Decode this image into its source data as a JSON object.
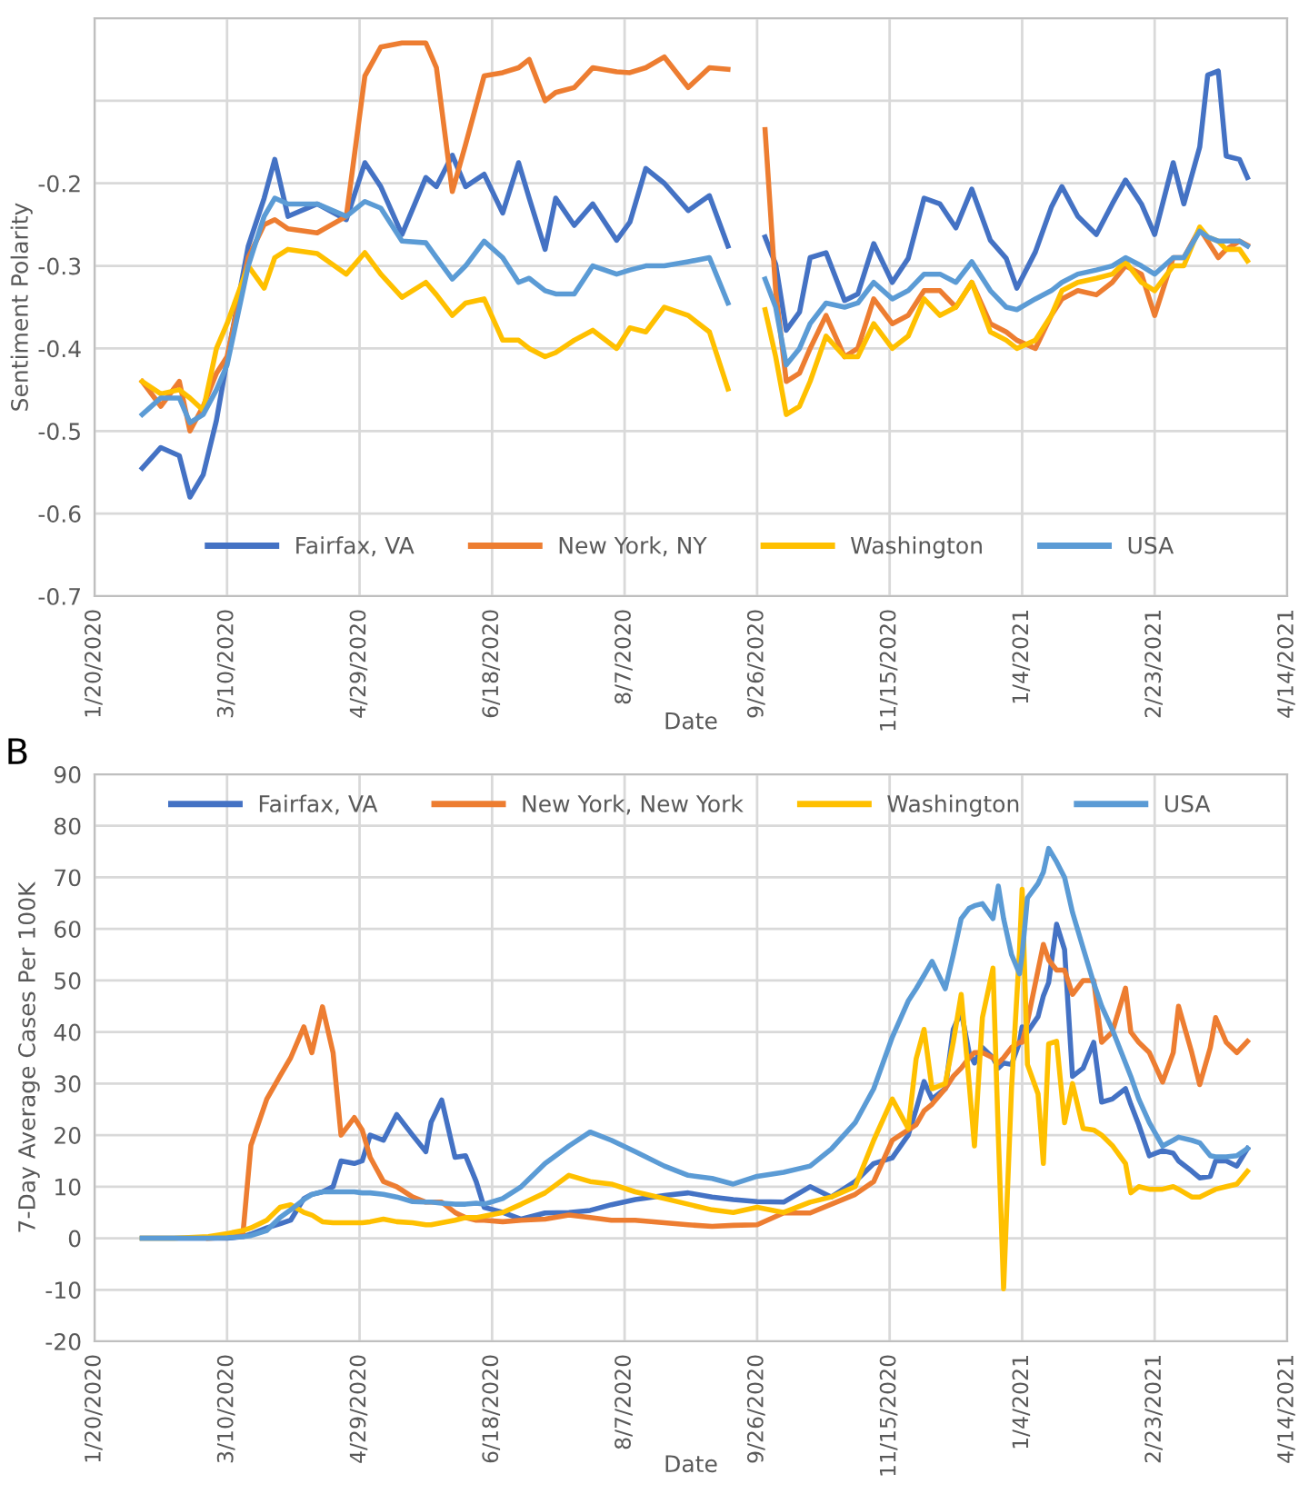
{
  "chart_data": [
    {
      "type": "line",
      "ylabel": "Sentiment Polarity",
      "xlabel": "Date",
      "grid": true,
      "legend": "bottom",
      "line_style": "solid",
      "marker": "none",
      "xlim": [
        "2020-01-20",
        "2021-04-14"
      ],
      "xticks": [
        {
          "value": "2020-01-20",
          "label": "1/20/2020"
        },
        {
          "value": "2020-03-10",
          "label": "3/10/2020"
        },
        {
          "value": "2020-04-29",
          "label": "4/29/2020"
        },
        {
          "value": "2020-06-18",
          "label": "6/18/2020"
        },
        {
          "value": "2020-08-07",
          "label": "8/7/2020"
        },
        {
          "value": "2020-09-26",
          "label": "9/26/2020"
        },
        {
          "value": "2020-11-15",
          "label": "11/15/2020"
        },
        {
          "value": "2021-01-04",
          "label": "1/4/2021"
        },
        {
          "value": "2021-02-23",
          "label": "2/23/2021"
        },
        {
          "value": "2021-04-14",
          "label": "4/14/2021"
        }
      ],
      "ylim": [
        -0.7,
        0
      ],
      "yticks": [
        -0.7,
        -0.6,
        -0.5,
        -0.4,
        -0.3,
        -0.2,
        {
          "value": -0.1,
          "label": null
        },
        {
          "value": 0,
          "label": null
        }
      ],
      "x": [
        "2020-02-07",
        "2020-02-14",
        "2020-02-21",
        "2020-02-25",
        "2020-03-01",
        "2020-03-06",
        "2020-03-10",
        "2020-03-18",
        "2020-03-24",
        "2020-03-28",
        "2020-04-02",
        "2020-04-13",
        "2020-04-24",
        "2020-05-01",
        "2020-05-07",
        "2020-05-15",
        "2020-05-24",
        "2020-05-28",
        "2020-06-03",
        "2020-06-08",
        "2020-06-15",
        "2020-06-22",
        "2020-06-28",
        "2020-07-02",
        "2020-07-08",
        "2020-07-12",
        "2020-07-19",
        "2020-07-26",
        "2020-08-04",
        "2020-08-09",
        "2020-08-15",
        "2020-08-22",
        "2020-08-31",
        "2020-09-08",
        "2020-09-15",
        "2020-09-22",
        "2020-09-29",
        "2020-10-03",
        "2020-10-07",
        "2020-10-12",
        "2020-10-16",
        "2020-10-22",
        "2020-10-29",
        "2020-11-03",
        "2020-11-09",
        "2020-11-16",
        "2020-11-22",
        "2020-11-28",
        "2020-12-04",
        "2020-12-10",
        "2020-12-16",
        "2020-12-23",
        "2020-12-29",
        "2021-01-02",
        "2021-01-09",
        "2021-01-15",
        "2021-01-19",
        "2021-01-25",
        "2021-02-01",
        "2021-02-07",
        "2021-02-12",
        "2021-02-18",
        "2021-02-23",
        "2021-03-02",
        "2021-03-06",
        "2021-03-12",
        "2021-03-15",
        "2021-03-19",
        "2021-03-22",
        "2021-03-27",
        "2021-03-30"
      ],
      "series": [
        {
          "name": "Fairfax, VA",
          "color": "#4472c4",
          "values": [
            -0.545,
            -0.52,
            -0.53,
            -0.58,
            -0.553,
            -0.487,
            -0.414,
            -0.276,
            -0.218,
            -0.171,
            -0.24,
            -0.225,
            -0.244,
            -0.175,
            -0.204,
            -0.262,
            -0.193,
            -0.204,
            -0.166,
            -0.204,
            -0.189,
            -0.236,
            -0.175,
            -0.218,
            -0.28,
            -0.218,
            -0.251,
            -0.225,
            -0.269,
            -0.247,
            -0.182,
            -0.2,
            -0.233,
            -0.215,
            -0.276,
            null,
            -0.265,
            -0.298,
            -0.378,
            -0.356,
            -0.29,
            -0.284,
            -0.342,
            -0.334,
            -0.273,
            -0.32,
            -0.291,
            -0.218,
            -0.225,
            -0.254,
            -0.207,
            -0.269,
            -0.291,
            -0.327,
            -0.283,
            -0.229,
            -0.204,
            -0.24,
            -0.262,
            -0.225,
            -0.196,
            -0.225,
            -0.262,
            -0.175,
            -0.225,
            -0.156,
            -0.069,
            -0.064,
            -0.167,
            -0.171,
            -0.193
          ]
        },
        {
          "name": "New York, NY",
          "color": "#ed7d31",
          "values": [
            -0.44,
            -0.47,
            -0.44,
            -0.5,
            -0.47,
            -0.43,
            -0.41,
            -0.29,
            -0.25,
            -0.244,
            -0.255,
            -0.26,
            -0.24,
            -0.07,
            -0.035,
            -0.03,
            -0.03,
            -0.06,
            -0.21,
            -0.153,
            -0.07,
            -0.066,
            -0.06,
            -0.05,
            -0.1,
            -0.09,
            -0.084,
            -0.06,
            -0.065,
            -0.066,
            -0.06,
            -0.047,
            -0.084,
            -0.06,
            -0.062,
            null,
            -0.135,
            -0.33,
            -0.44,
            -0.43,
            -0.4,
            -0.36,
            -0.41,
            -0.4,
            -0.34,
            -0.37,
            -0.36,
            -0.33,
            -0.33,
            -0.35,
            -0.32,
            -0.37,
            -0.38,
            -0.39,
            -0.4,
            -0.36,
            -0.34,
            -0.33,
            -0.335,
            -0.32,
            -0.3,
            -0.31,
            -0.36,
            -0.29,
            -0.29,
            -0.255,
            -0.27,
            -0.29,
            -0.28,
            -0.27,
            -0.275
          ]
        },
        {
          "name": "Washington",
          "color": "#ffc000",
          "values": [
            -0.44,
            -0.455,
            -0.45,
            -0.46,
            -0.475,
            -0.4,
            -0.37,
            -0.3,
            -0.327,
            -0.29,
            -0.28,
            -0.285,
            -0.31,
            -0.284,
            -0.31,
            -0.338,
            -0.32,
            -0.335,
            -0.36,
            -0.345,
            -0.34,
            -0.39,
            -0.39,
            -0.4,
            -0.41,
            -0.405,
            -0.39,
            -0.378,
            -0.4,
            -0.375,
            -0.38,
            -0.35,
            -0.36,
            -0.38,
            -0.449,
            null,
            -0.353,
            -0.41,
            -0.48,
            -0.47,
            -0.44,
            -0.385,
            -0.41,
            -0.41,
            -0.37,
            -0.4,
            -0.385,
            -0.34,
            -0.36,
            -0.35,
            -0.32,
            -0.38,
            -0.39,
            -0.4,
            -0.39,
            -0.36,
            -0.33,
            -0.32,
            -0.315,
            -0.31,
            -0.295,
            -0.32,
            -0.33,
            -0.3,
            -0.3,
            -0.253,
            -0.265,
            -0.27,
            -0.28,
            -0.28,
            -0.294
          ]
        },
        {
          "name": "USA",
          "color": "#5b9bd5",
          "values": [
            -0.48,
            -0.46,
            -0.46,
            -0.49,
            -0.48,
            -0.45,
            -0.42,
            -0.3,
            -0.24,
            -0.218,
            -0.225,
            -0.225,
            -0.24,
            -0.222,
            -0.23,
            -0.27,
            -0.272,
            -0.29,
            -0.316,
            -0.3,
            -0.27,
            -0.29,
            -0.32,
            -0.315,
            -0.33,
            -0.334,
            -0.334,
            -0.3,
            -0.31,
            -0.305,
            -0.3,
            -0.3,
            -0.295,
            -0.29,
            -0.345,
            null,
            -0.316,
            -0.35,
            -0.42,
            -0.4,
            -0.37,
            -0.345,
            -0.35,
            -0.345,
            -0.32,
            -0.34,
            -0.33,
            -0.31,
            -0.31,
            -0.32,
            -0.295,
            -0.33,
            -0.35,
            -0.353,
            -0.34,
            -0.33,
            -0.32,
            -0.31,
            -0.305,
            -0.3,
            -0.29,
            -0.3,
            -0.31,
            -0.29,
            -0.29,
            -0.258,
            -0.265,
            -0.27,
            -0.27,
            -0.27,
            -0.276
          ]
        }
      ]
    },
    {
      "type": "line",
      "ylabel": "7-Day Average Cases Per 100K",
      "xlabel": "Date",
      "grid": true,
      "legend": "top",
      "line_style": "solid",
      "marker": "none",
      "annotations": [
        "B"
      ],
      "xlim": [
        "2020-01-20",
        "2021-04-14"
      ],
      "xticks": [
        {
          "value": "2020-01-20",
          "label": "1/20/2020"
        },
        {
          "value": "2020-03-10",
          "label": "3/10/2020"
        },
        {
          "value": "2020-04-29",
          "label": "4/29/2020"
        },
        {
          "value": "2020-06-18",
          "label": "6/18/2020"
        },
        {
          "value": "2020-08-07",
          "label": "8/7/2020"
        },
        {
          "value": "2020-09-26",
          "label": "9/26/2020"
        },
        {
          "value": "2020-11-15",
          "label": "11/15/2020"
        },
        {
          "value": "2021-01-04",
          "label": "1/4/2021"
        },
        {
          "value": "2021-02-23",
          "label": "2/23/2021"
        },
        {
          "value": "2021-04-14",
          "label": "4/14/2021"
        }
      ],
      "ylim": [
        -20,
        90
      ],
      "yticks": [
        -20,
        -10,
        0,
        10,
        20,
        30,
        40,
        50,
        60,
        70,
        80,
        90
      ],
      "x": [
        "2020-02-07",
        "2020-02-19",
        "2020-03-03",
        "2020-03-10",
        "2020-03-16",
        "2020-03-19",
        "2020-03-25",
        "2020-03-30",
        "2020-04-03",
        "2020-04-08",
        "2020-04-11",
        "2020-04-15",
        "2020-04-19",
        "2020-04-22",
        "2020-04-27",
        "2020-04-30",
        "2020-05-03",
        "2020-05-08",
        "2020-05-13",
        "2020-05-19",
        "2020-05-24",
        "2020-05-26",
        "2020-05-30",
        "2020-06-04",
        "2020-06-08",
        "2020-06-12",
        "2020-06-15",
        "2020-06-22",
        "2020-06-29",
        "2020-07-08",
        "2020-07-17",
        "2020-07-25",
        "2020-08-02",
        "2020-08-11",
        "2020-08-22",
        "2020-08-31",
        "2020-09-09",
        "2020-09-17",
        "2020-09-26",
        "2020-10-06",
        "2020-10-16",
        "2020-10-24",
        "2020-11-02",
        "2020-11-09",
        "2020-11-16",
        "2020-11-22",
        "2020-11-25",
        "2020-11-28",
        "2020-12-01",
        "2020-12-06",
        "2020-12-09",
        "2020-12-12",
        "2020-12-15",
        "2020-12-17",
        "2020-12-20",
        "2020-12-24",
        "2020-12-26",
        "2020-12-28",
        "2020-12-31",
        "2021-01-03",
        "2021-01-04",
        "2021-01-06",
        "2021-01-10",
        "2021-01-12",
        "2021-01-14",
        "2021-01-17",
        "2021-01-20",
        "2021-01-23",
        "2021-01-27",
        "2021-01-31",
        "2021-02-03",
        "2021-02-07",
        "2021-02-12",
        "2021-02-14",
        "2021-02-17",
        "2021-02-21",
        "2021-02-26",
        "2021-03-02",
        "2021-03-04",
        "2021-03-09",
        "2021-03-12",
        "2021-03-16",
        "2021-03-18",
        "2021-03-22",
        "2021-03-26",
        "2021-03-30"
      ],
      "series": [
        {
          "name": "Fairfax, VA",
          "color": "#4472c4",
          "values": [
            0,
            0,
            0,
            0,
            0.3,
            0.8,
            2,
            2.8,
            3.5,
            7.7,
            8.5,
            9,
            10,
            15,
            14.5,
            15,
            20,
            19,
            24,
            20,
            16.8,
            22.5,
            26.8,
            15.7,
            16,
            11,
            6,
            5,
            3.7,
            4.9,
            5,
            5.4,
            6.5,
            7.5,
            8.3,
            8.8,
            8,
            7.5,
            7.1,
            7,
            10,
            8,
            11,
            14.5,
            15.6,
            20,
            25,
            30.4,
            27,
            29,
            40.5,
            44,
            36,
            34,
            37,
            35,
            33,
            34,
            33.7,
            38,
            41,
            40,
            43,
            47,
            49.6,
            60.9,
            56,
            31.4,
            33,
            38,
            26.4,
            27,
            29,
            26,
            22,
            16,
            17,
            16.5,
            15,
            13,
            11.7,
            12,
            15,
            15,
            14,
            17.4
          ]
        },
        {
          "name": "New York, New York",
          "color": "#ed7d31",
          "values": [
            null,
            null,
            0,
            0.2,
            0.9,
            18,
            27,
            31.5,
            35,
            41,
            36,
            44.9,
            36,
            20,
            23.4,
            21,
            15.7,
            11,
            10,
            8,
            7,
            7,
            7,
            5,
            4,
            3.5,
            3.5,
            3.2,
            3.5,
            3.7,
            4.5,
            4,
            3.5,
            3.5,
            3,
            2.6,
            2.3,
            2.5,
            2.6,
            4.9,
            4.9,
            6.6,
            8.5,
            11,
            19,
            21,
            22,
            24.7,
            26,
            29,
            31.4,
            33,
            35,
            36,
            36,
            35,
            34,
            35,
            37,
            38,
            38,
            42,
            52,
            57,
            54,
            52,
            52,
            47.3,
            50,
            50,
            38,
            40,
            48.5,
            40,
            38,
            36,
            30.3,
            36,
            45,
            36,
            29.8,
            37,
            42.8,
            38,
            36,
            38.2
          ]
        },
        {
          "name": "Washington",
          "color": "#ffc000",
          "values": [
            0,
            0,
            0.3,
            0.9,
            1.5,
            2,
            3.5,
            6,
            6.5,
            5,
            4.5,
            3.2,
            3,
            3,
            3,
            3,
            3.2,
            3.7,
            3.2,
            3,
            2.6,
            2.6,
            3,
            3.5,
            4,
            4,
            4.3,
            5,
            6.6,
            8.8,
            12.2,
            11,
            10.5,
            9,
            7.7,
            6.6,
            5.5,
            5,
            6,
            5,
            7,
            8,
            10,
            19,
            27,
            21.3,
            34.8,
            40.5,
            29,
            30,
            38,
            47.3,
            30,
            17.9,
            42.8,
            52.4,
            20,
            -9.8,
            29.2,
            55.8,
            67.7,
            33.7,
            28,
            14.5,
            37.7,
            38.2,
            22.4,
            30,
            21.3,
            21,
            20,
            18,
            14.5,
            8.8,
            10,
            9.5,
            9.5,
            10,
            9.5,
            8,
            8,
            9,
            9.5,
            10,
            10.5,
            13
          ]
        },
        {
          "name": "USA",
          "color": "#5b9bd5",
          "values": [
            0,
            0,
            0,
            0.1,
            0.3,
            0.5,
            1.5,
            4,
            5.5,
            7.5,
            8.5,
            9,
            9,
            9,
            9,
            8.8,
            8.8,
            8.5,
            8,
            7.1,
            7,
            7,
            6.8,
            6.6,
            6.6,
            6.8,
            6.6,
            7.7,
            10,
            14.5,
            17.9,
            20.6,
            19,
            16.8,
            14,
            12.2,
            11.6,
            10.5,
            12,
            12.8,
            14,
            17.3,
            22.4,
            29,
            39,
            46,
            48.4,
            51,
            53.7,
            48.4,
            55,
            62,
            64,
            64.5,
            64.9,
            62,
            68.3,
            62,
            55,
            51.3,
            55,
            66,
            68.8,
            71,
            75.6,
            73,
            70,
            63.2,
            56.3,
            49.5,
            45,
            40.5,
            34,
            31.4,
            27,
            22.4,
            17.9,
            19,
            19.6,
            19,
            18.5,
            16,
            15.8,
            15.8,
            16,
            17.4
          ]
        }
      ]
    }
  ]
}
